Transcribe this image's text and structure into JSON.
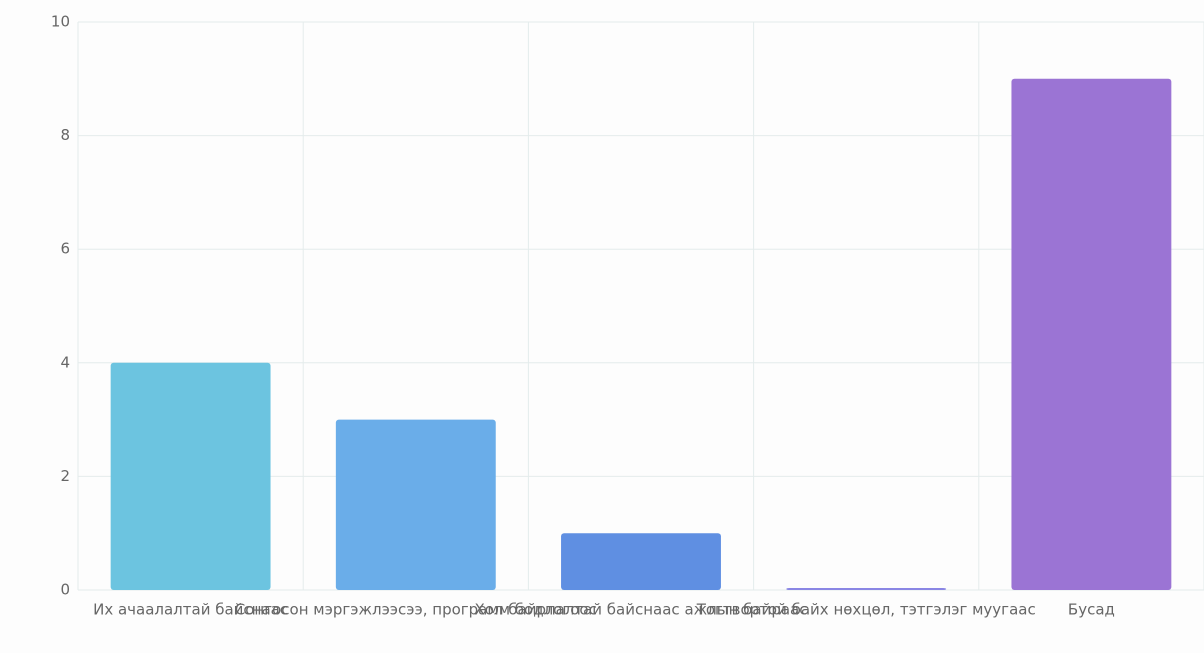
{
  "chart_data": {
    "type": "bar",
    "categories": [
      "Их ачаалалтай байснаас",
      "Сонгосон мэргэжлээсээ, программ бодлогоос",
      "Хол байрлалтай байснаас ажлын байраас",
      "Тогтвортой байх нөхцөл, тэтгэлэг муугаас",
      "Бусад"
    ],
    "values": [
      4,
      3,
      1,
      0,
      9
    ],
    "colors": [
      "#6cc4e0",
      "#6aade9",
      "#5f8fe2",
      "#8a86e4",
      "#9b74d4"
    ],
    "ylim": [
      0,
      10
    ],
    "yticks": [
      0,
      2,
      4,
      6,
      8,
      10
    ],
    "grid": true
  }
}
